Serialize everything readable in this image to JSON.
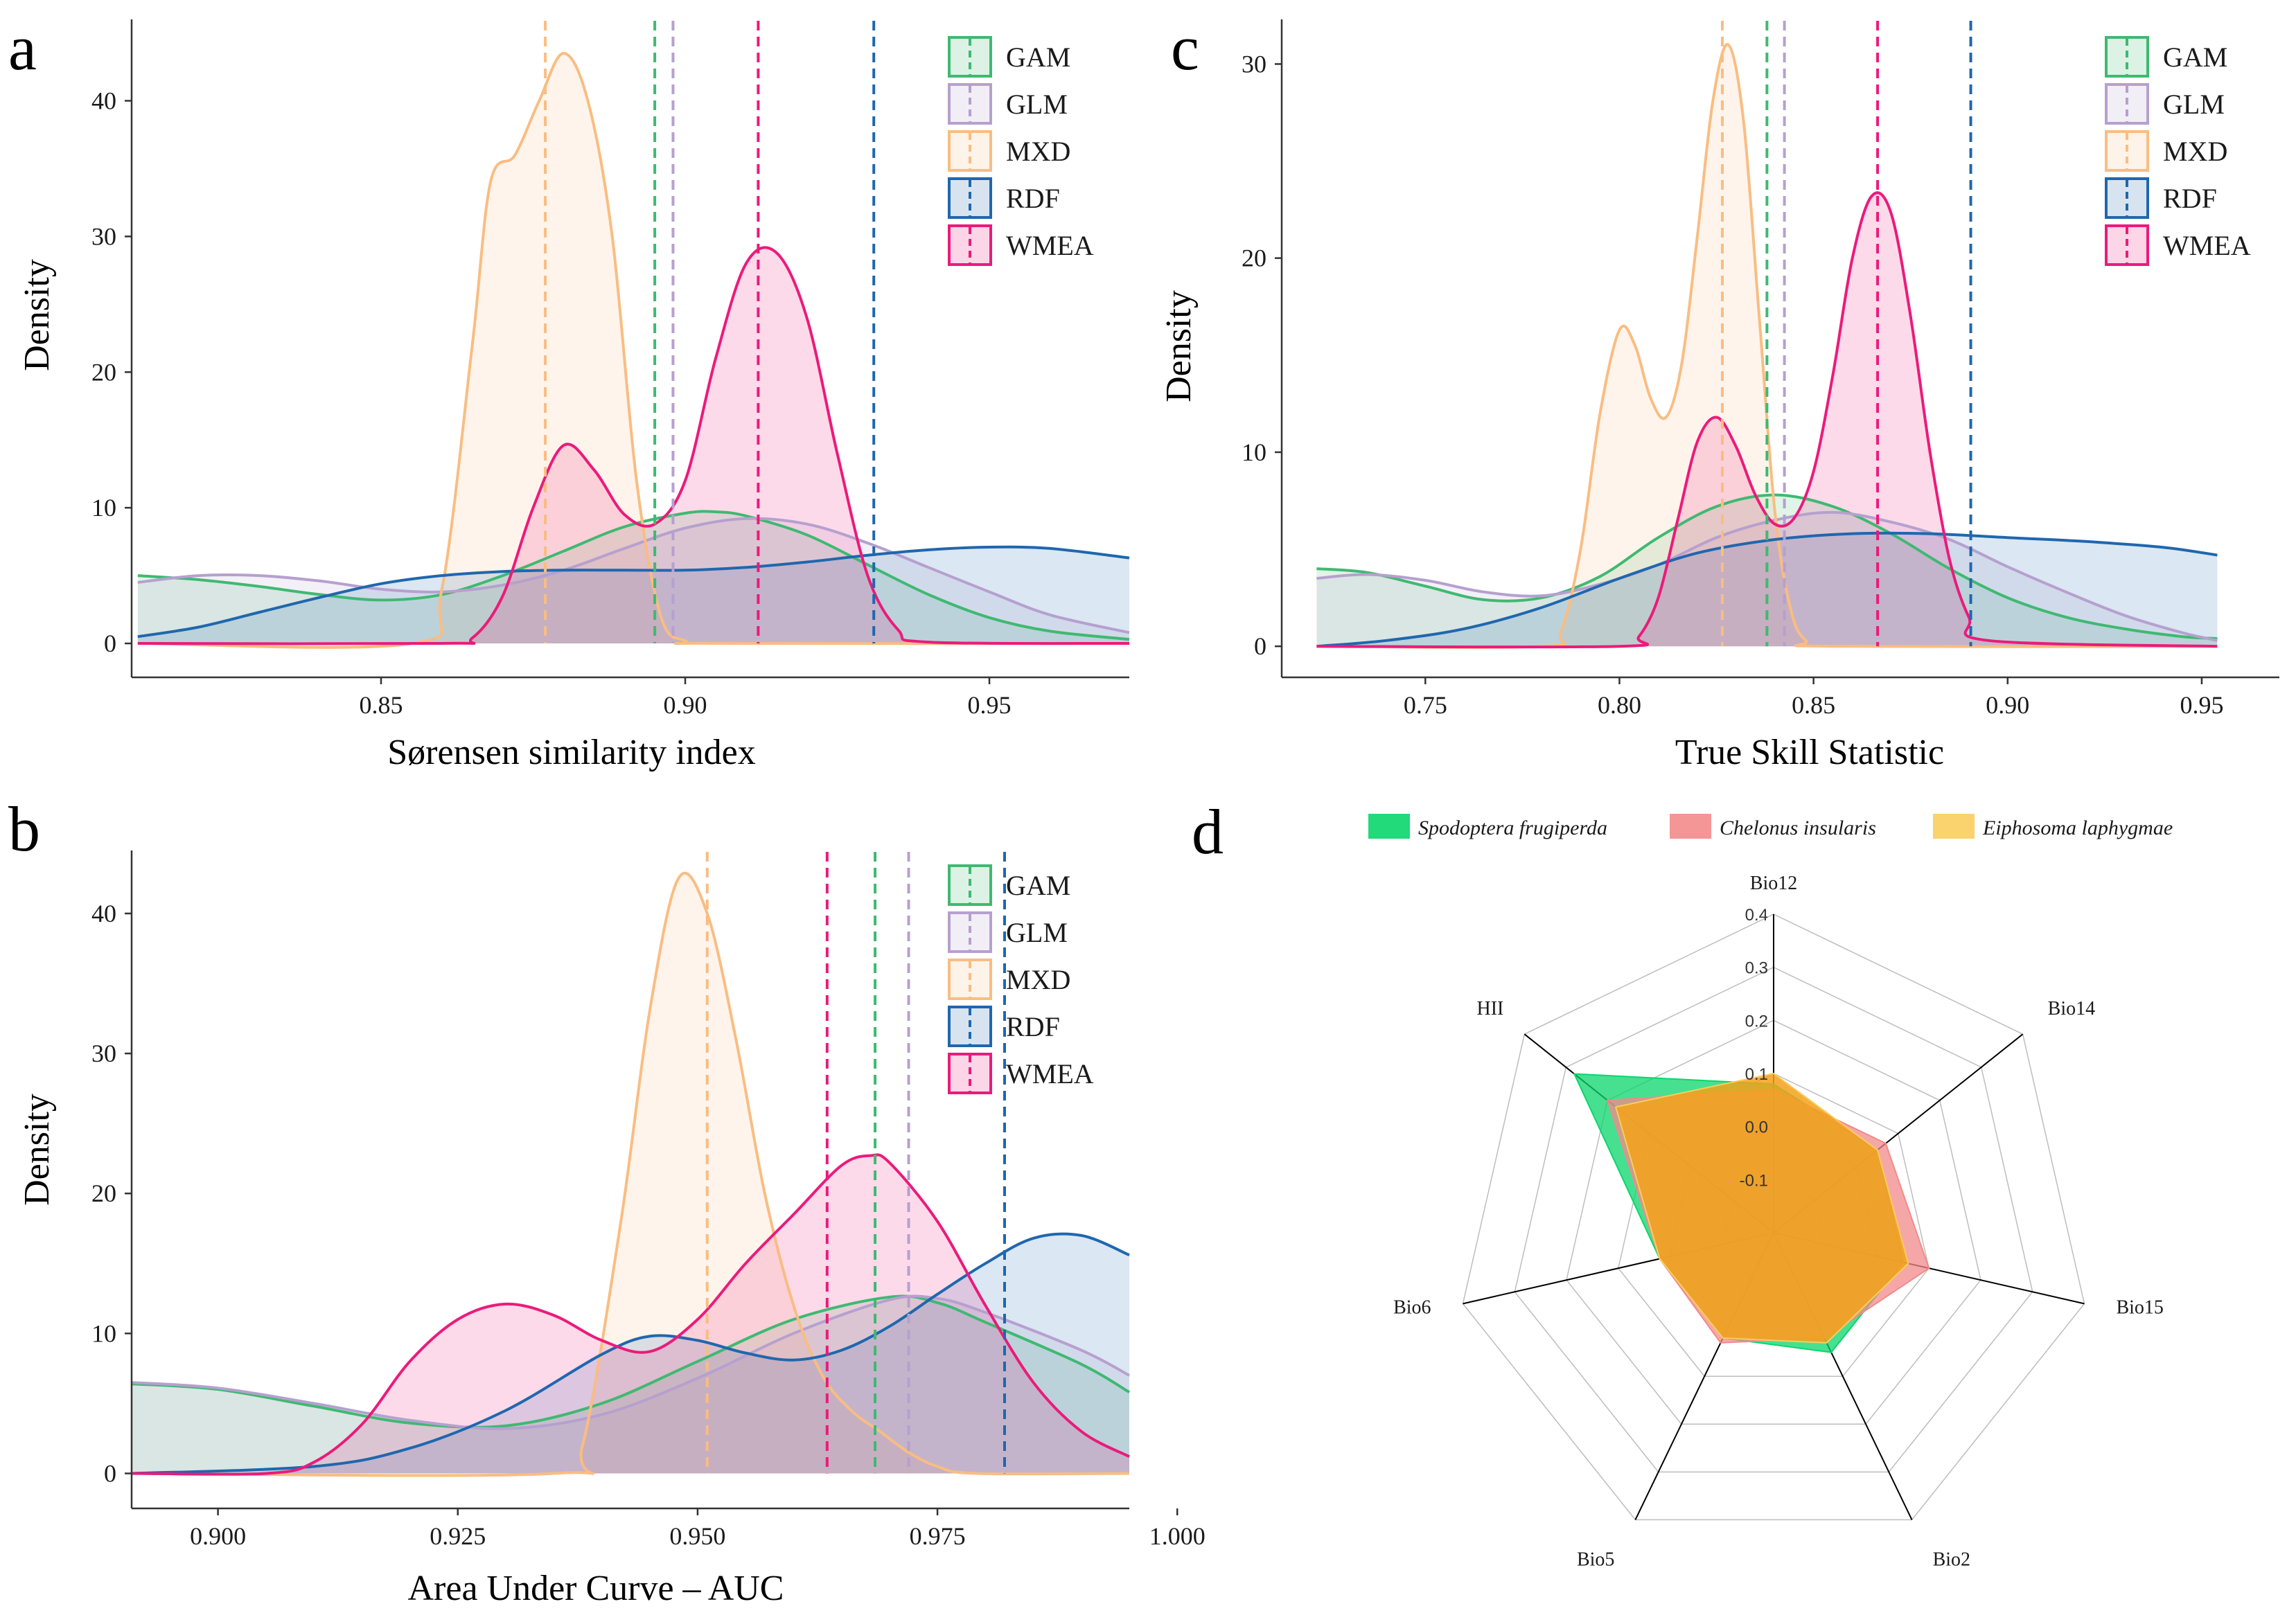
{
  "colors": {
    "GAM": "#3fb971",
    "GLM": "#b6a0cf",
    "MXD": "#f9bd82",
    "RDF": "#1f67ae",
    "WMEA": "#ec1a7b",
    "axis": "#333333",
    "radar_species": [
      "#0ad66b",
      "#f3898b",
      "#f9cd5e"
    ],
    "radar_fill": [
      "#0ad66b",
      "#f28a8a",
      "#f5a11a"
    ]
  },
  "chart_data": [
    {
      "id": "a",
      "panel_letter": "a",
      "type": "area",
      "title": "",
      "xlabel": "Sørensen similarity index",
      "ylabel": "Density",
      "xlim": [
        0.809,
        0.973
      ],
      "ylim": [
        -2.5,
        46
      ],
      "xticks": [
        0.85,
        0.9,
        0.95
      ],
      "xtick_labels": [
        "0.85",
        "0.90",
        "0.95"
      ],
      "yticks": [
        0,
        10,
        20,
        30,
        40
      ],
      "ytick_labels": [
        "0",
        "10",
        "20",
        "30",
        "40"
      ],
      "legend_position": "top-right",
      "legend": [
        "GAM",
        "GLM",
        "MXD",
        "RDF",
        "WMEA"
      ],
      "series": [
        {
          "name": "GAM",
          "x": [
            0.81,
            0.82,
            0.83,
            0.84,
            0.85,
            0.86,
            0.87,
            0.88,
            0.89,
            0.9,
            0.905,
            0.91,
            0.92,
            0.93,
            0.94,
            0.95,
            0.96,
            0.973
          ],
          "values": [
            5,
            4.7,
            4.2,
            3.6,
            3.2,
            3.6,
            5,
            6.8,
            8.6,
            9.6,
            9.7,
            9.4,
            8,
            5.8,
            3.6,
            1.9,
            0.9,
            0.3
          ]
        },
        {
          "name": "GLM",
          "x": [
            0.81,
            0.82,
            0.83,
            0.84,
            0.85,
            0.86,
            0.87,
            0.88,
            0.89,
            0.9,
            0.91,
            0.92,
            0.93,
            0.94,
            0.95,
            0.96,
            0.973
          ],
          "values": [
            4.5,
            5,
            5,
            4.6,
            4,
            3.8,
            4.3,
            5.4,
            7,
            8.5,
            9.2,
            8.8,
            7.4,
            5.6,
            3.8,
            2.1,
            0.8
          ]
        },
        {
          "name": "MXD",
          "x": [
            0.81,
            0.855,
            0.86,
            0.865,
            0.868,
            0.872,
            0.876,
            0.88,
            0.884,
            0.888,
            0.892,
            0.896,
            0.9,
            0.905,
            0.973
          ],
          "values": [
            0,
            0,
            4,
            22,
            34,
            36,
            40,
            43.5,
            40,
            30,
            12,
            2,
            0.2,
            0,
            0
          ]
        },
        {
          "name": "RDF",
          "x": [
            0.81,
            0.82,
            0.83,
            0.84,
            0.85,
            0.86,
            0.87,
            0.88,
            0.89,
            0.9,
            0.91,
            0.92,
            0.93,
            0.94,
            0.95,
            0.96,
            0.973
          ],
          "values": [
            0.5,
            1.2,
            2.3,
            3.4,
            4.4,
            5,
            5.3,
            5.4,
            5.4,
            5.4,
            5.6,
            6,
            6.5,
            6.9,
            7.1,
            7,
            6.3
          ]
        },
        {
          "name": "WMEA",
          "x": [
            0.81,
            0.86,
            0.865,
            0.87,
            0.875,
            0.88,
            0.885,
            0.89,
            0.895,
            0.9,
            0.905,
            0.91,
            0.915,
            0.92,
            0.925,
            0.93,
            0.935,
            0.94,
            0.973
          ],
          "values": [
            0,
            0,
            0.4,
            3.5,
            10,
            14.6,
            12.8,
            9.5,
            8.8,
            12,
            21,
            28,
            28.8,
            24,
            14,
            5,
            1,
            0.1,
            0
          ]
        }
      ],
      "means": [
        {
          "name": "MXD",
          "x": 0.877
        },
        {
          "name": "GAM",
          "x": 0.895
        },
        {
          "name": "GLM",
          "x": 0.898
        },
        {
          "name": "WMEA",
          "x": 0.912
        },
        {
          "name": "RDF",
          "x": 0.931
        }
      ]
    },
    {
      "id": "b",
      "panel_letter": "b",
      "type": "area",
      "title": "",
      "xlabel": "Area Under Curve – AUC",
      "ylabel": "Density",
      "xlim": [
        0.891,
        0.995
      ],
      "ylim": [
        -2.5,
        44.5
      ],
      "xticks": [
        0.9,
        0.925,
        0.95,
        0.975,
        1.0
      ],
      "xtick_labels": [
        "0.900",
        "0.925",
        "0.950",
        "0.975",
        "1.000"
      ],
      "yticks": [
        0,
        10,
        20,
        30,
        40
      ],
      "ytick_labels": [
        "0",
        "10",
        "20",
        "30",
        "40"
      ],
      "legend_position": "top-right",
      "legend": [
        "GAM",
        "GLM",
        "MXD",
        "RDF",
        "WMEA"
      ],
      "series": [
        {
          "name": "GAM",
          "x": [
            0.891,
            0.9,
            0.91,
            0.92,
            0.93,
            0.94,
            0.95,
            0.96,
            0.97,
            0.975,
            0.98,
            0.99,
            0.995
          ],
          "values": [
            6.4,
            6,
            4.8,
            3.6,
            3.4,
            5,
            8,
            11,
            12.6,
            12.2,
            10.8,
            7.8,
            5.8
          ]
        },
        {
          "name": "GLM",
          "x": [
            0.891,
            0.9,
            0.91,
            0.92,
            0.93,
            0.94,
            0.95,
            0.96,
            0.97,
            0.975,
            0.98,
            0.99,
            0.995
          ],
          "values": [
            6.5,
            6.1,
            5,
            3.8,
            3.2,
            4.2,
            6.8,
            10,
            12.4,
            12.5,
            11.5,
            8.8,
            7
          ]
        },
        {
          "name": "MXD",
          "x": [
            0.891,
            0.935,
            0.938,
            0.942,
            0.945,
            0.948,
            0.951,
            0.954,
            0.957,
            0.96,
            0.963,
            0.966,
            0.969,
            0.972,
            0.975,
            0.979,
            0.995
          ],
          "values": [
            0,
            0,
            2,
            18,
            33,
            42.5,
            40,
            31,
            20,
            12,
            7,
            4.5,
            3,
            1.5,
            0.5,
            0,
            0
          ]
        },
        {
          "name": "RDF",
          "x": [
            0.891,
            0.91,
            0.92,
            0.93,
            0.94,
            0.945,
            0.95,
            0.955,
            0.96,
            0.965,
            0.97,
            0.975,
            0.98,
            0.985,
            0.99,
            0.995
          ],
          "values": [
            0,
            0.5,
            1.8,
            4.5,
            8.5,
            9.8,
            9.5,
            8.6,
            8.1,
            8.8,
            10.5,
            12.8,
            15,
            16.8,
            17,
            15.6
          ]
        },
        {
          "name": "WMEA",
          "x": [
            0.891,
            0.905,
            0.91,
            0.915,
            0.92,
            0.925,
            0.93,
            0.935,
            0.94,
            0.945,
            0.95,
            0.955,
            0.96,
            0.965,
            0.968,
            0.97,
            0.975,
            0.98,
            0.985,
            0.99,
            0.995
          ],
          "values": [
            0,
            0,
            0.8,
            3.5,
            8,
            11,
            12.1,
            11.3,
            9.5,
            8.7,
            11,
            15,
            18.5,
            22,
            22.7,
            22.2,
            18,
            12,
            6.5,
            3,
            1.2
          ]
        }
      ],
      "means": [
        {
          "name": "MXD",
          "x": 0.951
        },
        {
          "name": "WMEA",
          "x": 0.9635
        },
        {
          "name": "GAM",
          "x": 0.9685
        },
        {
          "name": "GLM",
          "x": 0.972
        },
        {
          "name": "RDF",
          "x": 0.982
        }
      ]
    },
    {
      "id": "c",
      "panel_letter": "c",
      "type": "area",
      "title": "",
      "xlabel": "True Skill Statistic",
      "ylabel": "Density",
      "xlim": [
        0.713,
        0.97
      ],
      "ylim": [
        -1.6,
        32.3
      ],
      "xticks": [
        0.75,
        0.8,
        0.85,
        0.9,
        0.95
      ],
      "xtick_labels": [
        "0.75",
        "0.80",
        "0.85",
        "0.90",
        "0.95"
      ],
      "yticks": [
        0,
        10,
        20,
        30
      ],
      "ytick_labels": [
        "0",
        "10",
        "20",
        "30"
      ],
      "legend_position": "top-right",
      "legend": [
        "GAM",
        "GLM",
        "MXD",
        "RDF",
        "WMEA"
      ],
      "series": [
        {
          "name": "GAM",
          "x": [
            0.722,
            0.735,
            0.75,
            0.765,
            0.78,
            0.795,
            0.81,
            0.825,
            0.84,
            0.855,
            0.87,
            0.885,
            0.9,
            0.915,
            0.93,
            0.945,
            0.954
          ],
          "values": [
            4,
            3.8,
            3.1,
            2.4,
            2.5,
            3.6,
            5.6,
            7.2,
            7.8,
            7.2,
            5.8,
            4,
            2.5,
            1.5,
            0.9,
            0.5,
            0.4
          ]
        },
        {
          "name": "GLM",
          "x": [
            0.722,
            0.735,
            0.75,
            0.765,
            0.78,
            0.795,
            0.81,
            0.825,
            0.84,
            0.855,
            0.87,
            0.885,
            0.9,
            0.915,
            0.93,
            0.945,
            0.954
          ],
          "values": [
            3.5,
            3.7,
            3.4,
            2.8,
            2.6,
            3.2,
            4.2,
            5.6,
            6.5,
            6.9,
            6.4,
            5.5,
            4.1,
            2.8,
            1.6,
            0.7,
            0.3
          ]
        },
        {
          "name": "MXD",
          "x": [
            0.722,
            0.78,
            0.785,
            0.79,
            0.795,
            0.8,
            0.804,
            0.808,
            0.812,
            0.816,
            0.82,
            0.824,
            0.828,
            0.832,
            0.836,
            0.84,
            0.844,
            0.848,
            0.855,
            0.954
          ],
          "values": [
            0,
            0,
            0.8,
            5,
            12,
            16.3,
            15.5,
            12.8,
            11.8,
            14.5,
            21,
            28,
            31,
            27,
            17,
            7,
            2,
            0.3,
            0,
            0
          ]
        },
        {
          "name": "RDF",
          "x": [
            0.722,
            0.74,
            0.76,
            0.78,
            0.8,
            0.82,
            0.84,
            0.86,
            0.88,
            0.9,
            0.92,
            0.94,
            0.954
          ],
          "values": [
            0,
            0.3,
            0.9,
            2,
            3.5,
            4.8,
            5.5,
            5.8,
            5.8,
            5.6,
            5.4,
            5.1,
            4.7
          ]
        },
        {
          "name": "WMEA",
          "x": [
            0.722,
            0.8,
            0.805,
            0.81,
            0.815,
            0.82,
            0.825,
            0.83,
            0.835,
            0.84,
            0.845,
            0.85,
            0.855,
            0.86,
            0.865,
            0.87,
            0.875,
            0.88,
            0.885,
            0.89,
            0.895,
            0.954
          ],
          "values": [
            0,
            0,
            0.5,
            2.5,
            6.5,
            10.5,
            11.8,
            10.3,
            7.8,
            6.3,
            6.6,
            9,
            14,
            20,
            23.2,
            22.3,
            17,
            10,
            4.5,
            1.5,
            0.3,
            0
          ]
        }
      ],
      "means": [
        {
          "name": "MXD",
          "x": 0.8265
        },
        {
          "name": "GAM",
          "x": 0.838
        },
        {
          "name": "GLM",
          "x": 0.8425
        },
        {
          "name": "WMEA",
          "x": 0.8665
        },
        {
          "name": "RDF",
          "x": 0.8905
        }
      ]
    },
    {
      "id": "d",
      "panel_letter": "d",
      "type": "radar",
      "title": "",
      "axes": [
        "Bio12",
        "Bio14",
        "Bio15",
        "Bio2",
        "Bio5",
        "Bio6",
        "HII"
      ],
      "rlim": [
        -0.2,
        0.4
      ],
      "rticks": [
        -0.1,
        0.0,
        0.1,
        0.2,
        0.3,
        0.4
      ],
      "rtick_labels": [
        "-0.1",
        "0.0",
        "0.1",
        "0.2",
        "0.3",
        "0.4"
      ],
      "legend_position": "top",
      "series": [
        {
          "name": "Spodoptera frugiperda",
          "values": [
            0.08,
            0.05,
            0.05,
            0.05,
            0.02,
            0.02,
            0.28
          ]
        },
        {
          "name": "Chelonus insularis",
          "values": [
            0.07,
            0.07,
            0.1,
            0.02,
            0.03,
            0.02,
            0.2
          ]
        },
        {
          "name": "Eiphosoma laphygmae",
          "values": [
            0.1,
            0.05,
            0.06,
            0.03,
            0.02,
            0.02,
            0.18
          ]
        }
      ]
    }
  ]
}
